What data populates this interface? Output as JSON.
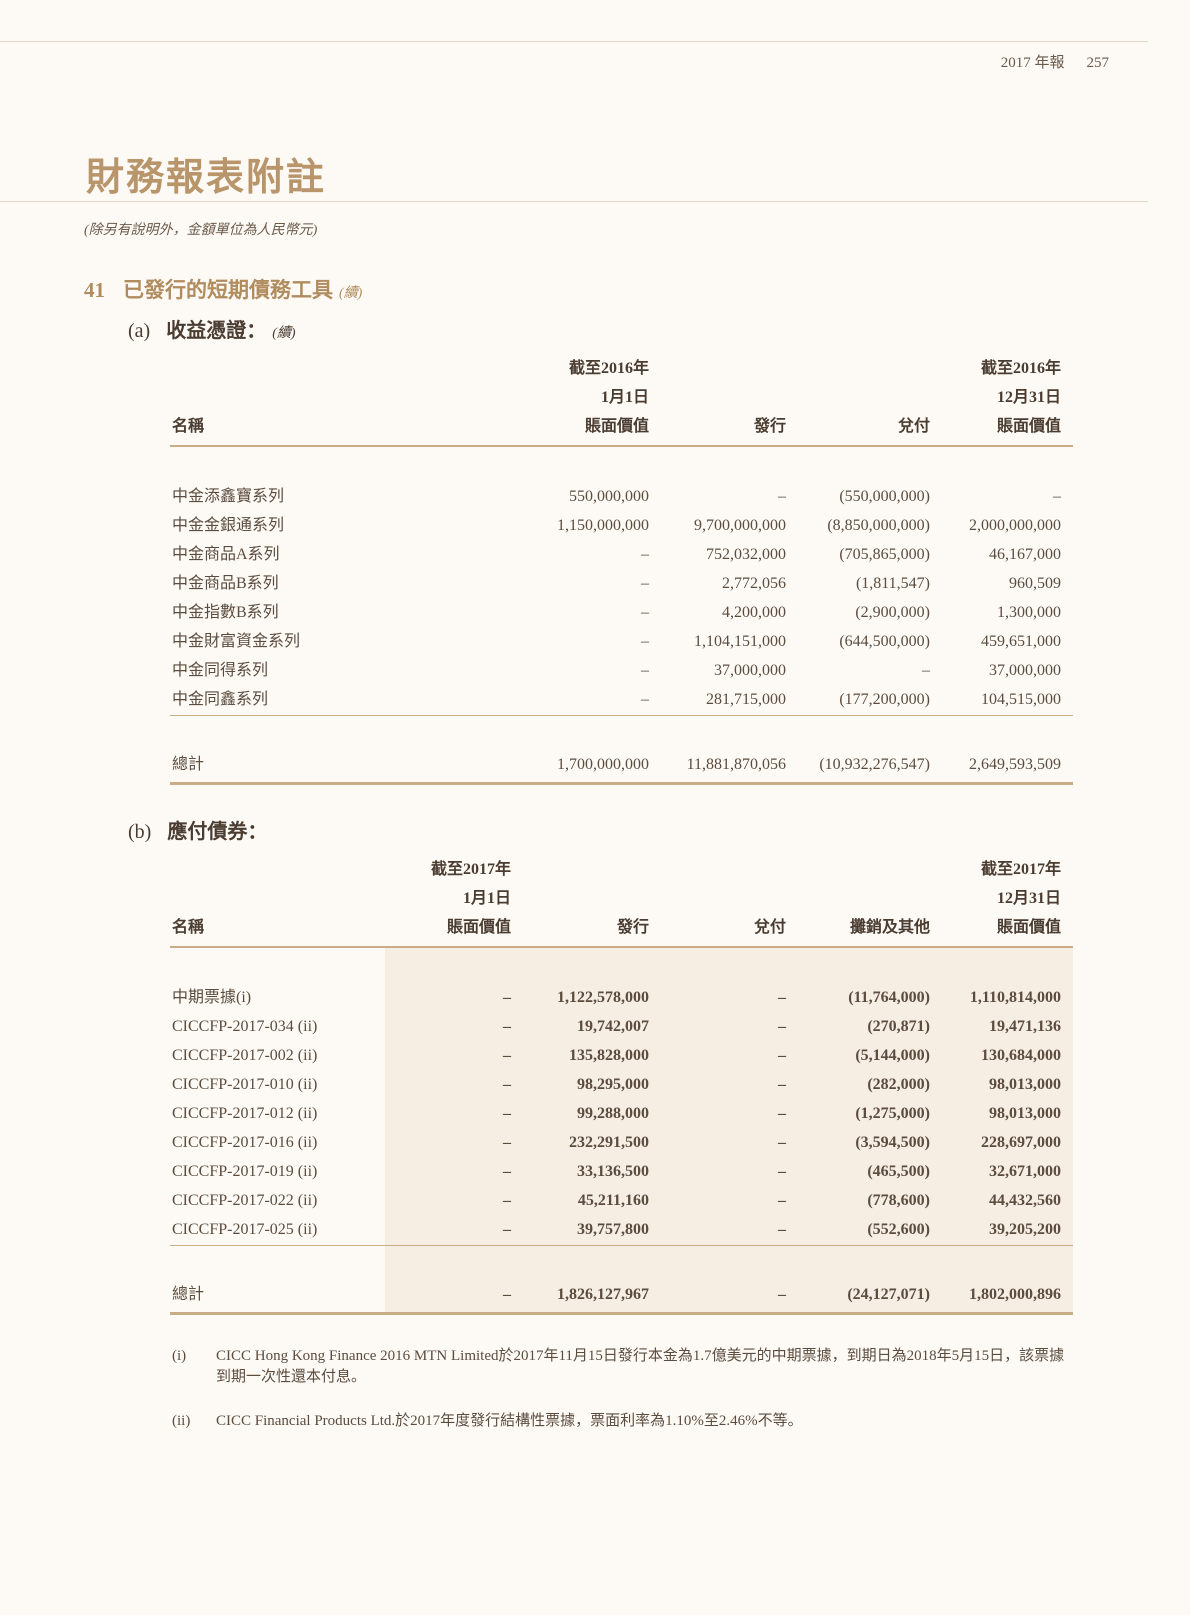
{
  "header": {
    "report": "2017 年報",
    "page": "257"
  },
  "title": "財務報表附註",
  "unit_note": "(除另有說明外，金額單位為人民幣元)",
  "section": {
    "number": "41",
    "title": "已發行的短期債務工具",
    "cont": "(續)"
  },
  "part_a": {
    "label": "(a)",
    "title": "收益憑證：",
    "cont": "(續)",
    "headers": [
      [
        "",
        "截至2016年",
        "",
        "",
        "截至2016年"
      ],
      [
        "",
        "1月1日",
        "",
        "",
        "12月31日"
      ],
      [
        "名稱",
        "賬面價值",
        "發行",
        "兌付",
        "賬面價值"
      ]
    ],
    "rows": [
      [
        "中金添鑫寶系列",
        "550,000,000",
        "–",
        "(550,000,000)",
        "–"
      ],
      [
        "中金金銀通系列",
        "1,150,000,000",
        "9,700,000,000",
        "(8,850,000,000)",
        "2,000,000,000"
      ],
      [
        "中金商品A系列",
        "–",
        "752,032,000",
        "(705,865,000)",
        "46,167,000"
      ],
      [
        "中金商品B系列",
        "–",
        "2,772,056",
        "(1,811,547)",
        "960,509"
      ],
      [
        "中金指數B系列",
        "–",
        "4,200,000",
        "(2,900,000)",
        "1,300,000"
      ],
      [
        "中金財富資金系列",
        "–",
        "1,104,151,000",
        "(644,500,000)",
        "459,651,000"
      ],
      [
        "中金同得系列",
        "–",
        "37,000,000",
        "–",
        "37,000,000"
      ],
      [
        "中金同鑫系列",
        "–",
        "281,715,000",
        "(177,200,000)",
        "104,515,000"
      ]
    ],
    "total": [
      "總計",
      "1,700,000,000",
      "11,881,870,056",
      "(10,932,276,547)",
      "2,649,593,509"
    ]
  },
  "part_b": {
    "label": "(b)",
    "title": "應付債券：",
    "headers": [
      [
        "",
        "截至2017年",
        "",
        "",
        "",
        "截至2017年"
      ],
      [
        "",
        "1月1日",
        "",
        "",
        "",
        "12月31日"
      ],
      [
        "名稱",
        "賬面價值",
        "發行",
        "兌付",
        "攤銷及其他",
        "賬面價值"
      ]
    ],
    "rows": [
      [
        "中期票據(i)",
        "–",
        "1,122,578,000",
        "–",
        "(11,764,000)",
        "1,110,814,000"
      ],
      [
        "CICCFP-2017-034 (ii)",
        "–",
        "19,742,007",
        "–",
        "(270,871)",
        "19,471,136"
      ],
      [
        "CICCFP-2017-002 (ii)",
        "–",
        "135,828,000",
        "–",
        "(5,144,000)",
        "130,684,000"
      ],
      [
        "CICCFP-2017-010 (ii)",
        "–",
        "98,295,000",
        "–",
        "(282,000)",
        "98,013,000"
      ],
      [
        "CICCFP-2017-012 (ii)",
        "–",
        "99,288,000",
        "–",
        "(1,275,000)",
        "98,013,000"
      ],
      [
        "CICCFP-2017-016 (ii)",
        "–",
        "232,291,500",
        "–",
        "(3,594,500)",
        "228,697,000"
      ],
      [
        "CICCFP-2017-019 (ii)",
        "–",
        "33,136,500",
        "–",
        "(465,500)",
        "32,671,000"
      ],
      [
        "CICCFP-2017-022 (ii)",
        "–",
        "45,211,160",
        "–",
        "(778,600)",
        "44,432,560"
      ],
      [
        "CICCFP-2017-025 (ii)",
        "–",
        "39,757,800",
        "–",
        "(552,600)",
        "39,205,200"
      ]
    ],
    "total": [
      "總計",
      "–",
      "1,826,127,967",
      "–",
      "(24,127,071)",
      "1,802,000,896"
    ]
  },
  "footnotes": [
    {
      "mark": "(i)",
      "text": "CICC Hong Kong Finance 2016 MTN Limited於2017年11月15日發行本金為1.7億美元的中期票據，到期日為2018年5月15日，該票據到期一次性還本付息。"
    },
    {
      "mark": "(ii)",
      "text": "CICC Financial Products Ltd.於2017年度發行結構性票據，票面利率為1.10%至2.46%不等。"
    }
  ]
}
